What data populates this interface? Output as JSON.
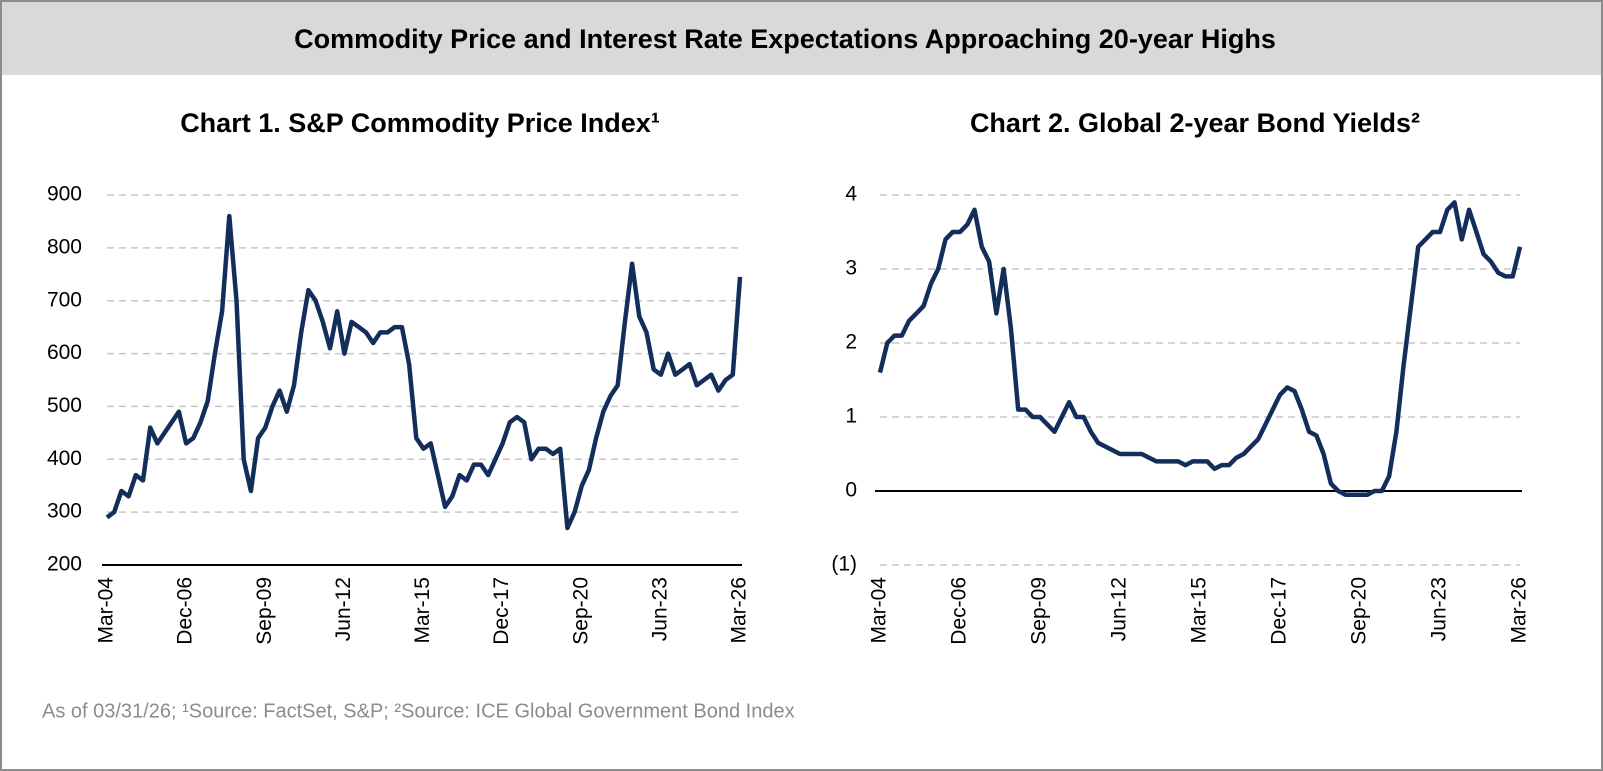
{
  "header": {
    "title": "Commodity Price and Interest Rate Expectations Approaching 20-year Highs"
  },
  "footer": {
    "note": "As of 03/31/26; ¹Source: FactSet, S&P; ²Source: ICE Global Government Bond Index"
  },
  "chart_data": [
    {
      "type": "line",
      "title": "Chart 1. S&P Commodity Price Index¹",
      "categories": [
        "Mar-04",
        null,
        null,
        null,
        null,
        null,
        null,
        null,
        null,
        null,
        null,
        "Dec-06",
        null,
        null,
        null,
        null,
        null,
        null,
        null,
        null,
        null,
        null,
        "Sep-09",
        null,
        null,
        null,
        null,
        null,
        null,
        null,
        null,
        null,
        null,
        "Jun-12",
        null,
        null,
        null,
        null,
        null,
        null,
        null,
        null,
        null,
        null,
        "Mar-15",
        null,
        null,
        null,
        null,
        null,
        null,
        null,
        null,
        null,
        null,
        "Dec-17",
        null,
        null,
        null,
        null,
        null,
        null,
        null,
        null,
        null,
        null,
        "Sep-20",
        null,
        null,
        null,
        null,
        null,
        null,
        null,
        null,
        null,
        null,
        "Jun-23",
        null,
        null,
        null,
        null,
        null,
        null,
        null,
        null,
        null,
        null,
        "Mar-26"
      ],
      "series": [
        {
          "color": "#142e5c",
          "values": [
            290,
            300,
            340,
            330,
            370,
            360,
            460,
            430,
            450,
            470,
            490,
            430,
            440,
            470,
            510,
            600,
            680,
            860,
            700,
            400,
            340,
            440,
            460,
            500,
            530,
            490,
            540,
            640,
            720,
            700,
            660,
            610,
            680,
            600,
            660,
            650,
            640,
            620,
            640,
            640,
            650,
            650,
            580,
            440,
            420,
            430,
            370,
            310,
            330,
            370,
            360,
            390,
            390,
            370,
            400,
            430,
            470,
            480,
            470,
            400,
            420,
            420,
            410,
            420,
            270,
            300,
            350,
            380,
            440,
            490,
            520,
            540,
            660,
            770,
            670,
            640,
            570,
            560,
            600,
            560,
            570,
            580,
            540,
            550,
            560,
            530,
            550,
            560,
            745
          ]
        }
      ],
      "ylim": [
        200,
        900
      ],
      "yticks": [
        200,
        300,
        400,
        500,
        600,
        700,
        800,
        900
      ],
      "grid": true
    },
    {
      "type": "line",
      "title": "Chart 2. Global 2-year Bond Yields²",
      "categories": [
        "Mar-04",
        null,
        null,
        null,
        null,
        null,
        null,
        null,
        null,
        null,
        null,
        "Dec-06",
        null,
        null,
        null,
        null,
        null,
        null,
        null,
        null,
        null,
        null,
        "Sep-09",
        null,
        null,
        null,
        null,
        null,
        null,
        null,
        null,
        null,
        null,
        "Jun-12",
        null,
        null,
        null,
        null,
        null,
        null,
        null,
        null,
        null,
        null,
        "Mar-15",
        null,
        null,
        null,
        null,
        null,
        null,
        null,
        null,
        null,
        null,
        "Dec-17",
        null,
        null,
        null,
        null,
        null,
        null,
        null,
        null,
        null,
        null,
        "Sep-20",
        null,
        null,
        null,
        null,
        null,
        null,
        null,
        null,
        null,
        null,
        "Jun-23",
        null,
        null,
        null,
        null,
        null,
        null,
        null,
        null,
        null,
        null,
        "Mar-26"
      ],
      "series": [
        {
          "color": "#142e5c",
          "values": [
            1.6,
            2.0,
            2.1,
            2.1,
            2.3,
            2.4,
            2.5,
            2.8,
            3.0,
            3.4,
            3.5,
            3.5,
            3.6,
            3.8,
            3.3,
            3.1,
            2.4,
            3.0,
            2.2,
            1.1,
            1.1,
            1.0,
            1.0,
            0.9,
            0.8,
            1.0,
            1.2,
            1.0,
            1.0,
            0.8,
            0.65,
            0.6,
            0.55,
            0.5,
            0.5,
            0.5,
            0.5,
            0.45,
            0.4,
            0.4,
            0.4,
            0.4,
            0.35,
            0.4,
            0.4,
            0.4,
            0.3,
            0.35,
            0.35,
            0.45,
            0.5,
            0.6,
            0.7,
            0.9,
            1.1,
            1.3,
            1.4,
            1.35,
            1.1,
            0.8,
            0.75,
            0.5,
            0.1,
            0.0,
            -0.05,
            -0.05,
            -0.05,
            -0.05,
            0.0,
            0.0,
            0.2,
            0.8,
            1.7,
            2.5,
            3.3,
            3.4,
            3.5,
            3.5,
            3.8,
            3.9,
            3.4,
            3.8,
            3.5,
            3.2,
            3.1,
            2.95,
            2.9,
            2.9,
            3.3
          ]
        }
      ],
      "ylim": [
        -1,
        4
      ],
      "yticks": [
        {
          "value": -1,
          "label": "(1)"
        },
        0,
        1,
        2,
        3,
        4
      ],
      "grid": true
    }
  ]
}
